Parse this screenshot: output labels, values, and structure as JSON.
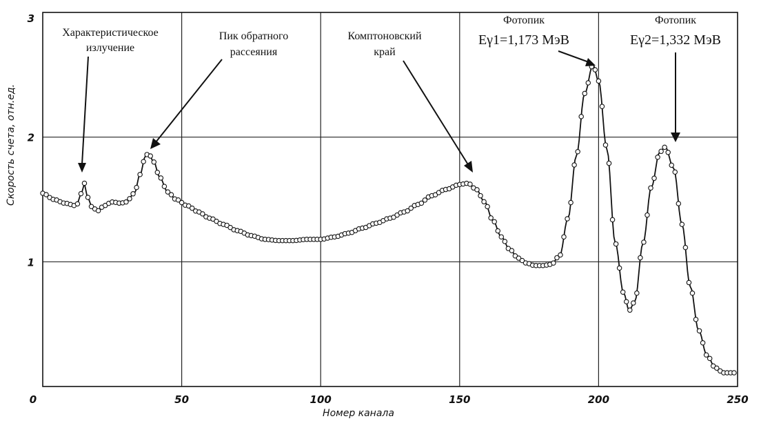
{
  "chart_data": {
    "type": "scatter",
    "xlabel": "Номер канала",
    "ylabel": "Скорость счета, отн.ед.",
    "xlim": [
      0,
      250
    ],
    "ylim": [
      0,
      3
    ],
    "x_ticks": [
      "0",
      "50",
      "100",
      "150",
      "200",
      "250"
    ],
    "y_ticks": [
      "1",
      "2",
      "3"
    ],
    "grid": true,
    "series": [
      {
        "x": [
          0,
          4,
          8,
          12,
          14,
          15,
          16,
          18,
          20,
          22,
          25,
          28,
          30,
          33,
          35,
          37,
          38,
          40,
          42,
          45,
          48,
          52,
          56,
          60,
          65,
          70,
          75,
          80,
          85,
          90,
          95,
          100,
          105,
          110,
          115,
          120,
          125,
          130,
          135,
          140,
          145,
          150,
          153,
          156,
          159,
          162,
          165,
          168,
          171,
          174,
          177,
          180,
          183,
          186,
          189,
          192,
          195,
          198,
          200,
          203,
          206,
          209,
          211,
          213,
          216,
          219,
          222,
          224,
          227,
          230,
          233,
          236,
          239,
          242,
          245,
          249
        ],
        "y": [
          1.55,
          1.5,
          1.47,
          1.45,
          1.55,
          1.63,
          1.52,
          1.43,
          1.41,
          1.45,
          1.48,
          1.47,
          1.48,
          1.55,
          1.7,
          1.85,
          1.87,
          1.8,
          1.68,
          1.56,
          1.5,
          1.45,
          1.4,
          1.35,
          1.3,
          1.25,
          1.21,
          1.18,
          1.17,
          1.17,
          1.18,
          1.18,
          1.2,
          1.23,
          1.27,
          1.31,
          1.35,
          1.4,
          1.46,
          1.53,
          1.58,
          1.62,
          1.63,
          1.58,
          1.48,
          1.33,
          1.2,
          1.1,
          1.03,
          0.99,
          0.97,
          0.97,
          0.98,
          1.05,
          1.35,
          1.85,
          2.35,
          2.58,
          2.45,
          1.9,
          1.15,
          0.75,
          0.61,
          0.68,
          1.15,
          1.6,
          1.88,
          1.92,
          1.75,
          1.3,
          0.8,
          0.45,
          0.25,
          0.15,
          0.11,
          0.11
        ]
      }
    ],
    "annotations": [
      {
        "lines": [
          "Характеристическое",
          "излучение"
        ]
      },
      {
        "lines": [
          "Пик обратного",
          "рассеяния"
        ]
      },
      {
        "lines": [
          "Комптоновский",
          "край"
        ]
      },
      {
        "lines": [
          "Фотопик",
          "Eγ1=1,173 МэВ"
        ]
      },
      {
        "lines": [
          "Фотопик",
          "Eγ2=1,332 МэВ"
        ]
      }
    ]
  }
}
